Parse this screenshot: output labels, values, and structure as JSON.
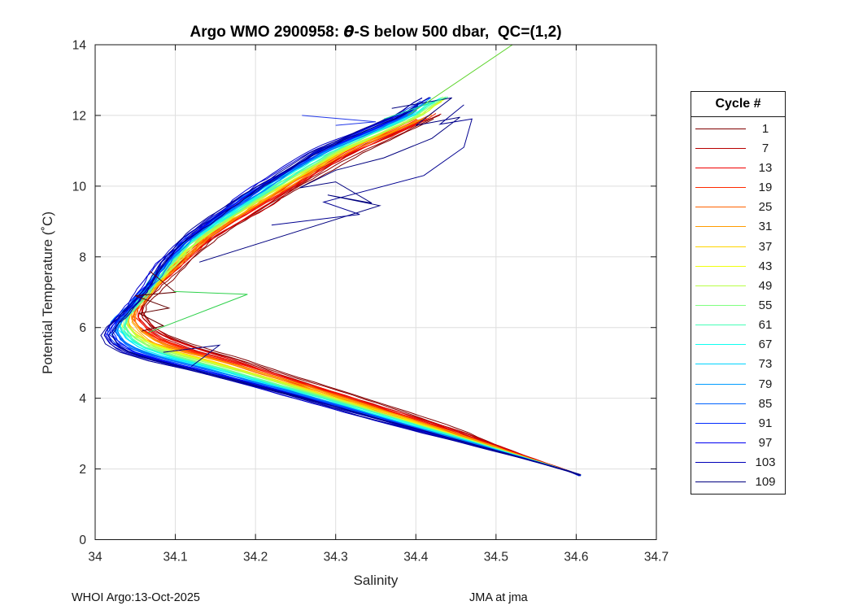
{
  "figure": {
    "title": {
      "pre": "Argo WMO 2900958: ",
      "theta": "θ",
      "post": "-S below 500 dbar,  QC=(1,2)"
    },
    "xlabel": "Salinity",
    "ylabel": "Potential Temperature (˚C)",
    "footer_left": "WHOI Argo:13-Oct-2025",
    "footer_right": "JMA at jma"
  },
  "chart_data": {
    "type": "line",
    "title": "Argo WMO 2900958: θ-S below 500 dbar,  QC=(1,2)",
    "xlabel": "Salinity",
    "ylabel": "Potential Temperature (°C)",
    "xlim": [
      34,
      34.7
    ],
    "ylim": [
      0,
      14
    ],
    "xticks": [
      "34",
      "34.1",
      "34.2",
      "34.3",
      "34.4",
      "34.5",
      "34.6",
      "34.7"
    ],
    "yticks": [
      "0",
      "2",
      "4",
      "6",
      "8",
      "10",
      "12",
      "14"
    ],
    "grid": true,
    "legend": {
      "title": "Cycle #",
      "position": "outside-right",
      "entries": [
        {
          "cycle": 1,
          "color": "#800000"
        },
        {
          "cycle": 7,
          "color": "#B80000"
        },
        {
          "cycle": 13,
          "color": "#F10000"
        },
        {
          "cycle": 19,
          "color": "#FF2B00"
        },
        {
          "cycle": 25,
          "color": "#FF6300"
        },
        {
          "cycle": 31,
          "color": "#FF9C00"
        },
        {
          "cycle": 37,
          "color": "#FFD400"
        },
        {
          "cycle": 43,
          "color": "#F1FF0E"
        },
        {
          "cycle": 49,
          "color": "#B8FF47"
        },
        {
          "cycle": 55,
          "color": "#80FF80"
        },
        {
          "cycle": 61,
          "color": "#47FFB8"
        },
        {
          "cycle": 67,
          "color": "#0EFFF1"
        },
        {
          "cycle": 73,
          "color": "#00D4FF"
        },
        {
          "cycle": 79,
          "color": "#009CFF"
        },
        {
          "cycle": 85,
          "color": "#0063FF"
        },
        {
          "cycle": 91,
          "color": "#002BFF"
        },
        {
          "cycle": 97,
          "color": "#0000F1"
        },
        {
          "cycle": 103,
          "color": "#0000B8"
        },
        {
          "cycle": 109,
          "color": "#000080"
        }
      ]
    },
    "colormap": "reversed jet: cycle 1 = dark red, cycle 109 = dark navy",
    "series_note": "~109 Argo float profile cycles plotted as theta-S curves below 500 dbar; every 2nd cycle rendered here",
    "cycle_range": {
      "first": 1,
      "last": 109,
      "drawn_step": 2
    },
    "base_profile": [
      [
        1.84,
        34.605
      ],
      [
        2.3,
        34.538
      ],
      [
        3.0,
        34.437
      ],
      [
        3.6,
        34.35
      ],
      [
        4.2,
        34.263
      ],
      [
        4.7,
        34.19
      ],
      [
        5.0,
        34.147
      ],
      [
        5.3,
        34.1
      ],
      [
        5.6,
        34.063
      ],
      [
        5.9,
        34.044
      ],
      [
        6.2,
        34.035
      ],
      [
        6.5,
        34.04
      ],
      [
        6.8,
        34.052
      ],
      [
        7.2,
        34.068
      ],
      [
        7.6,
        34.085
      ],
      [
        8.0,
        34.101
      ],
      [
        8.5,
        34.125
      ],
      [
        9.0,
        34.157
      ],
      [
        9.5,
        34.192
      ],
      [
        10.0,
        34.226
      ],
      [
        10.5,
        34.262
      ],
      [
        11.0,
        34.3
      ],
      [
        11.5,
        34.35
      ],
      [
        12.0,
        34.4
      ],
      [
        12.3,
        34.418
      ],
      [
        12.6,
        34.44
      ]
    ],
    "spread": [
      [
        1.8,
        0.002
      ],
      [
        2.6,
        0.02
      ],
      [
        3.5,
        0.03
      ],
      [
        4.5,
        0.03
      ],
      [
        5.5,
        0.026
      ],
      [
        6.3,
        0.021
      ],
      [
        7.2,
        0.015
      ],
      [
        8.0,
        0.017
      ],
      [
        9.0,
        0.021
      ],
      [
        10.0,
        0.026
      ],
      [
        11.0,
        0.027
      ],
      [
        12.6,
        0.024
      ]
    ],
    "outliers": [
      {
        "name": "navy-zigzag-upper",
        "color": "#00007F",
        "points": [
          [
            34.13,
            7.85
          ],
          [
            34.355,
            9.45
          ],
          [
            34.29,
            9.75
          ],
          [
            34.345,
            9.52
          ],
          [
            34.3,
            10.12
          ],
          [
            34.255,
            9.95
          ],
          [
            34.3,
            10.45
          ],
          [
            34.36,
            10.8
          ],
          [
            34.42,
            11.35
          ],
          [
            34.455,
            11.95
          ],
          [
            34.4,
            11.72
          ],
          [
            34.445,
            12.5
          ],
          [
            34.37,
            12.2
          ]
        ]
      },
      {
        "name": "navy-zigzag-right",
        "color": "#000090",
        "points": [
          [
            34.22,
            8.9
          ],
          [
            34.33,
            9.2
          ],
          [
            34.285,
            9.55
          ],
          [
            34.41,
            10.3
          ],
          [
            34.46,
            11.1
          ],
          [
            34.47,
            11.9
          ],
          [
            34.43,
            11.75
          ],
          [
            34.46,
            12.3
          ]
        ]
      },
      {
        "name": "maroon-zigzag-turn",
        "color": "#640000",
        "points": [
          [
            34.068,
            7.6
          ],
          [
            34.1,
            7.0
          ],
          [
            34.05,
            6.9
          ],
          [
            34.092,
            6.55
          ],
          [
            34.055,
            6.4
          ],
          [
            34.085,
            6.05
          ],
          [
            34.058,
            5.9
          ]
        ]
      },
      {
        "name": "green-loop",
        "color": "#2ED14B",
        "points": [
          [
            34.098,
            7.02
          ],
          [
            34.19,
            6.94
          ],
          [
            34.066,
            5.86
          ]
        ]
      },
      {
        "name": "green-ray-top",
        "color": "#5FD42E",
        "points": [
          [
            34.39,
            12.0
          ],
          [
            34.54,
            14.3
          ]
        ]
      },
      {
        "name": "blue-spur-top",
        "color": "#2238E8",
        "points": [
          [
            34.258,
            12.0
          ],
          [
            34.35,
            11.82
          ],
          [
            34.3,
            11.72
          ]
        ]
      },
      {
        "name": "navy-spur-mid",
        "color": "#000085",
        "points": [
          [
            34.085,
            5.3
          ],
          [
            34.155,
            5.5
          ],
          [
            34.12,
            4.9
          ]
        ]
      },
      {
        "name": "teal-tip",
        "color": "#1EDFA6",
        "points": [
          [
            34.36,
            11.9
          ],
          [
            34.44,
            12.52
          ]
        ]
      }
    ]
  }
}
